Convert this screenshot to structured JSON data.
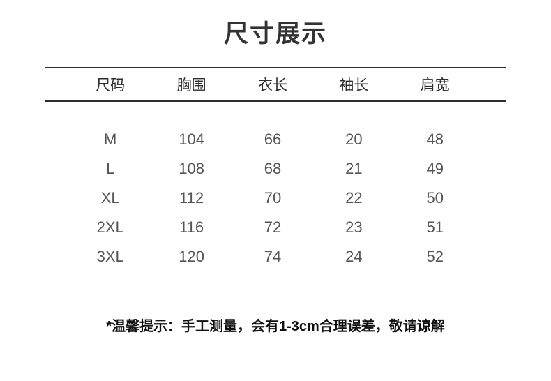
{
  "title": "尺寸展示",
  "table": {
    "headers": [
      "尺码",
      "胸围",
      "衣长",
      "袖长",
      "肩宽"
    ],
    "rows": [
      [
        "M",
        "104",
        "66",
        "20",
        "48"
      ],
      [
        "L",
        "108",
        "68",
        "21",
        "49"
      ],
      [
        "XL",
        "112",
        "70",
        "22",
        "50"
      ],
      [
        "2XL",
        "116",
        "72",
        "23",
        "51"
      ],
      [
        "3XL",
        "120",
        "74",
        "24",
        "52"
      ]
    ]
  },
  "note": "*温馨提示：手工测量，会有1-3cm合理误差，敬请谅解",
  "colors": {
    "background": "#ffffff",
    "title_text": "#333333",
    "header_text": "#2d2d2d",
    "data_text": "#555555",
    "note_text": "#111111",
    "rule": "#2e2e2e"
  }
}
